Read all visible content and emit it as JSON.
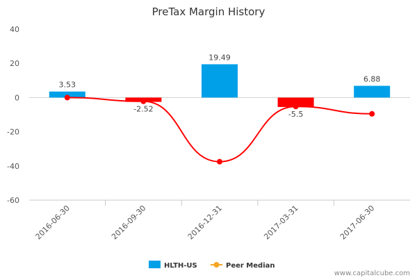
{
  "chart_data": {
    "type": "bar",
    "title": "PreTax Margin History",
    "categories": [
      "2016-06-30",
      "2016-09-30",
      "2016-12-31",
      "2017-03-31",
      "2017-06-30"
    ],
    "ylim": [
      -60,
      40
    ],
    "yticks": [
      40,
      20,
      0,
      -20,
      -40,
      -60
    ],
    "series": [
      {
        "name": "HLTH-US",
        "kind": "bar",
        "values": [
          3.53,
          -2.52,
          19.49,
          -5.5,
          6.88
        ],
        "labels": [
          "3.53",
          "-2.52",
          "19.49",
          "-5.5",
          "6.88"
        ],
        "positive_color": "#00a0e9",
        "negative_color": "#ff0000"
      },
      {
        "name": "Peer Median",
        "kind": "line",
        "values": [
          0,
          -2.2,
          -37.5,
          -5.2,
          -9.5
        ],
        "line_color": "#ff0000",
        "marker_color": "#ff0000",
        "legend_color": "#f5a623"
      }
    ],
    "xlabel": "",
    "ylabel": ""
  },
  "watermark": "www.capitalcube.com"
}
